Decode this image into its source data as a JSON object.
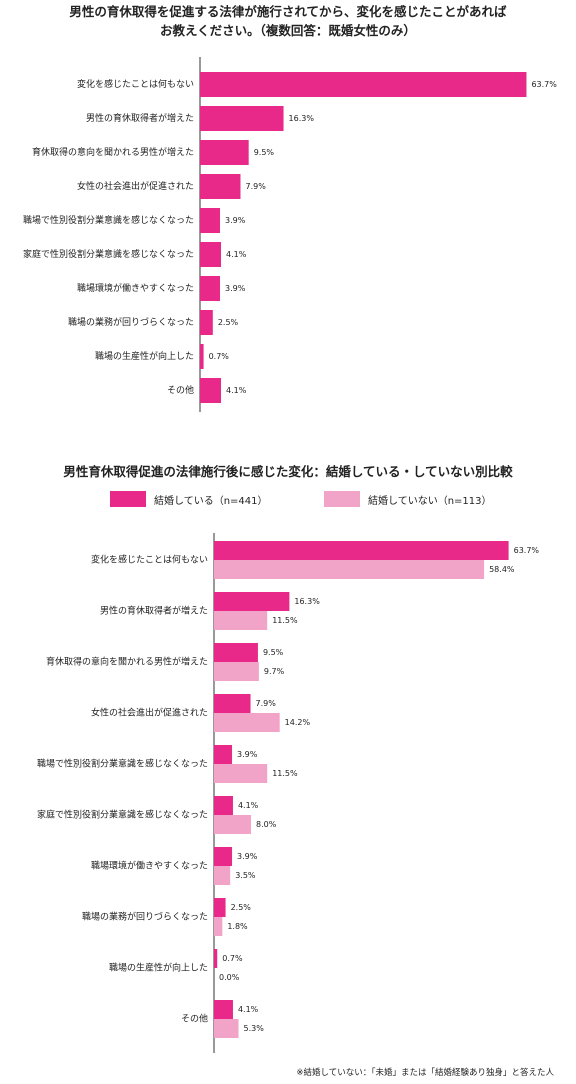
{
  "chart_data": [
    {
      "type": "bar",
      "orientation": "horizontal",
      "title": "男性の育休取得を促進する法律が施行されてから、変化を感じたことがあれば\nお教えください。（複数回答：既婚女性のみ）",
      "categories": [
        "変化を感じたことは何もない",
        "男性の育休取得者が増えた",
        "育休取得の意向を聞かれる男性が増えた",
        "女性の社会進出が促進された",
        "職場で性別役割分業意識を感じなくなった",
        "家庭で性別役割分業意識を感じなくなった",
        "職場環境が働きやすくなった",
        "職場の業務が回りづらくなった",
        "職場の生産性が向上した",
        "その他"
      ],
      "series": [
        {
          "values": [
            63.7,
            16.3,
            9.5,
            7.9,
            3.9,
            4.1,
            3.9,
            2.5,
            0.7,
            4.1
          ],
          "labels": [
            "63.7%",
            "16.3%",
            "9.5%",
            "7.9%",
            "3.9%",
            "4.1%",
            "3.9%",
            "2.5%",
            "0.7%",
            "4.1%"
          ],
          "color": "#e8298a"
        }
      ],
      "xlim": [
        0,
        64
      ],
      "grid": false
    },
    {
      "type": "bar",
      "orientation": "horizontal",
      "title": "男性育休取得促進の法律施行後に感じた変化：結婚している・していない別比較",
      "categories": [
        "変化を感じたことは何もない",
        "男性の育休取得者が増えた",
        "育休取得の意向を聞かれる男性が増えた",
        "女性の社会進出が促進された",
        "職場で性別役割分業意識を感じなくなった",
        "家庭で性別役割分業意識を感じなくなった",
        "職場環境が働きやすくなった",
        "職場の業務が回りづらくなった",
        "職場の生産性が向上した",
        "その他"
      ],
      "series": [
        {
          "name": "結婚している（n=441）",
          "values": [
            63.7,
            16.3,
            9.5,
            7.9,
            3.9,
            4.1,
            3.9,
            2.5,
            0.7,
            4.1
          ],
          "labels": [
            "63.7%",
            "16.3%",
            "9.5%",
            "7.9%",
            "3.9%",
            "4.1%",
            "3.9%",
            "2.5%",
            "0.7%",
            "4.1%"
          ],
          "color": "#e8298a"
        },
        {
          "name": "結婚していない（n=113）",
          "values": [
            58.4,
            11.5,
            9.7,
            14.2,
            11.5,
            8.0,
            3.5,
            1.8,
            0.0,
            5.3
          ],
          "labels": [
            "58.4%",
            "11.5%",
            "9.7%",
            "14.2%",
            "11.5%",
            "8.0%",
            "3.5%",
            "1.8%",
            "0.0%",
            "5.3%"
          ],
          "color": "#f2a3c8"
        }
      ],
      "xlim": [
        0,
        64
      ],
      "legend_position": "top",
      "grid": false,
      "footnote": "※結婚していない：「未婚」または「結婚経験あり独身」と答えた人"
    }
  ]
}
